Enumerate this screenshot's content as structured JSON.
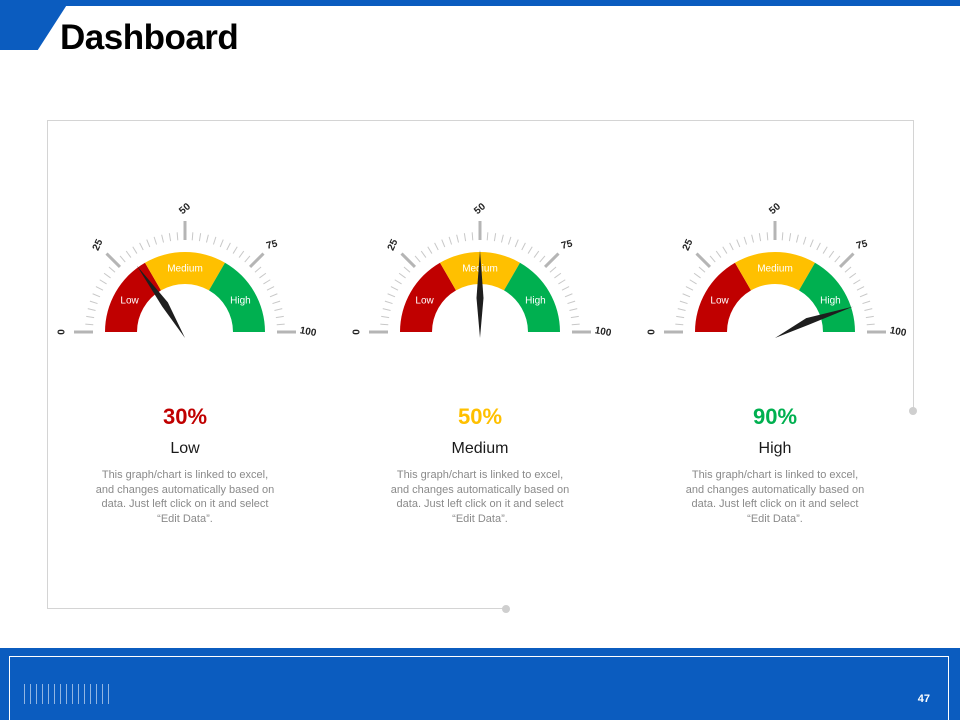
{
  "title": "Dashboard",
  "colors": {
    "brand": "#0b5cbf",
    "low": "#c00000",
    "medium": "#ffc000",
    "high": "#00b050"
  },
  "gauge_scale": {
    "ticks": [
      "0",
      "25",
      "50",
      "75",
      "100"
    ],
    "zones": [
      "Low",
      "Medium",
      "High"
    ]
  },
  "gauges": [
    {
      "value": 30,
      "percent_label": "30%",
      "caption": "Low",
      "color": "#c00000",
      "description": "This graph/chart is linked to excel, and changes automatically based on data. Just left click on it and select “Edit Data”."
    },
    {
      "value": 50,
      "percent_label": "50%",
      "caption": "Medium",
      "color": "#ffc000",
      "description": "This graph/chart is linked to excel, and changes automatically based on data. Just left click on it and select “Edit Data”."
    },
    {
      "value": 90,
      "percent_label": "90%",
      "caption": "High",
      "color": "#00b050",
      "description": "This graph/chart is linked to excel, and changes automatically based on data. Just left click on it and select “Edit Data”."
    }
  ],
  "footer": {
    "page_number": "47"
  }
}
